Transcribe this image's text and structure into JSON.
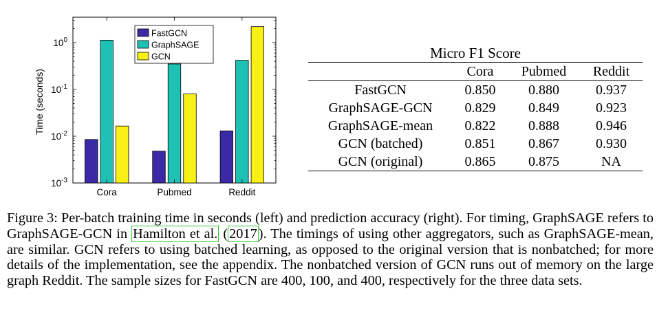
{
  "chart_data": {
    "type": "bar",
    "categories": [
      "Cora",
      "Pubmed",
      "Reddit"
    ],
    "series": [
      {
        "name": "FastGCN",
        "values": [
          0.0085,
          0.0048,
          0.013
        ],
        "color": "#3a2aa6"
      },
      {
        "name": "GraphSAGE",
        "values": [
          1.13,
          0.35,
          0.42
        ],
        "color": "#20c1b5"
      },
      {
        "name": "GCN",
        "values": [
          0.0165,
          0.08,
          2.2
        ],
        "color": "#f8f017"
      }
    ],
    "ylabel": "Time (seconds)",
    "xlabel": "",
    "yscale": "log",
    "ylim": [
      0.001,
      3.5
    ],
    "yticks": [
      {
        "value": 0.001,
        "base": "10",
        "exp": "-3"
      },
      {
        "value": 0.01,
        "base": "10",
        "exp": "-2"
      },
      {
        "value": 0.1,
        "base": "10",
        "exp": "-1"
      },
      {
        "value": 1,
        "base": "10",
        "exp": "0"
      }
    ],
    "legend": "top-center",
    "grid": false
  },
  "table": {
    "title": "Micro F1 Score",
    "headers": [
      "",
      "Cora",
      "Pubmed",
      "Reddit"
    ],
    "rows": [
      [
        "FastGCN",
        "0.850",
        "0.880",
        "0.937"
      ],
      [
        "GraphSAGE-GCN",
        "0.829",
        "0.849",
        "0.923"
      ],
      [
        "GraphSAGE-mean",
        "0.822",
        "0.888",
        "0.946"
      ],
      [
        "GCN (batched)",
        "0.851",
        "0.867",
        "0.930"
      ],
      [
        "GCN (original)",
        "0.865",
        "0.875",
        "NA"
      ]
    ]
  },
  "caption": {
    "part1": "Figure 3: Per-batch training time in seconds (left) and prediction accuracy (right). For timing, GraphSAGE refers to GraphSAGE-GCN in ",
    "cite_author": "Hamilton et al.",
    "cite_open": " (",
    "cite_year": "2017",
    "cite_close": ")",
    "part2": ". The timings of using other aggregators, such as GraphSAGE-mean, are similar. GCN refers to using batched learning, as opposed to the original version that is nonbatched; for more details of the implementation, see the appendix. The nonbatched version of GCN runs out of memory on the large graph Reddit. The sample sizes for FastGCN are 400, 100, and 400, respectively for the three data sets."
  }
}
